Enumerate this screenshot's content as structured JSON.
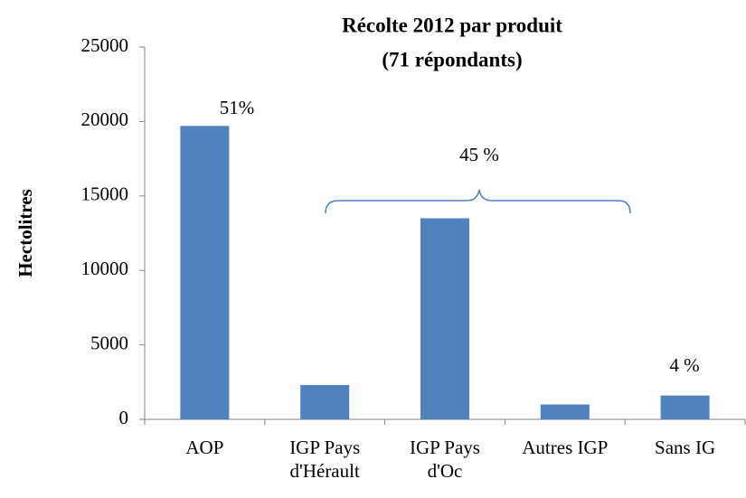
{
  "chart_data": {
    "type": "bar",
    "title": "Récolte 2012 par produit",
    "subtitle": "(71 répondants)",
    "y_label": "Hectolitres",
    "categories": [
      "AOP",
      "IGP Pays\nd'Hérault",
      "IGP Pays\nd'Oc",
      "Autres IGP",
      "Sans IG"
    ],
    "values": [
      19700,
      2300,
      13500,
      1000,
      1600
    ],
    "color": "#4f81bd",
    "ylim": [
      0,
      25000
    ],
    "yticks": [
      0,
      5000,
      10000,
      15000,
      20000,
      25000
    ],
    "grid": false,
    "annotations": [
      "51%",
      "45 %",
      "4 %"
    ]
  }
}
